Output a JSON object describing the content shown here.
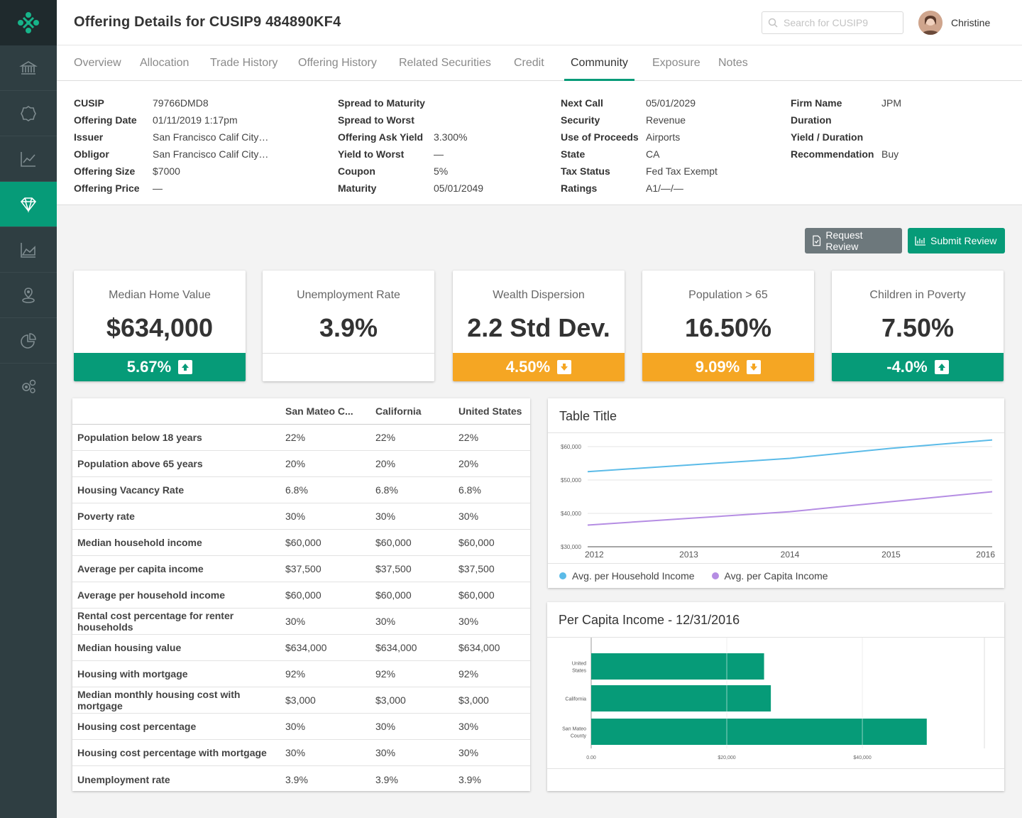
{
  "page": {
    "title": "Offering Details for CUSIP9 484890KF4"
  },
  "search": {
    "placeholder": "Search for CUSIP9"
  },
  "user": {
    "name": "Christine"
  },
  "tabs": [
    "Overview",
    "Allocation",
    "Trade History",
    "Offering History",
    "Related Securities",
    "Credit",
    "Community",
    "Exposure",
    "Notes"
  ],
  "details": {
    "col1": [
      {
        "label": "CUSIP",
        "value": "79766DMD8"
      },
      {
        "label": "Offering Date",
        "value": "01/11/2019 1:17pm"
      },
      {
        "label": "Issuer",
        "value": "San Francisco Calif City…"
      },
      {
        "label": "Obligor",
        "value": "San Francisco Calif City…"
      },
      {
        "label": "Offering Size",
        "value": "$7000"
      },
      {
        "label": "Offering Price",
        "value": "—"
      }
    ],
    "col2": [
      {
        "label": "Spread to Maturity",
        "value": ""
      },
      {
        "label": "Spread to Worst",
        "value": ""
      },
      {
        "label": "Offering Ask Yield",
        "value": "3.300%"
      },
      {
        "label": "Yield to Worst",
        "value": "—"
      },
      {
        "label": "Coupon",
        "value": "5%"
      },
      {
        "label": "Maturity",
        "value": "05/01/2049"
      }
    ],
    "col3": [
      {
        "label": "Next Call",
        "value": "05/01/2029"
      },
      {
        "label": "Security",
        "value": "Revenue"
      },
      {
        "label": "Use of Proceeds",
        "value": "Airports"
      },
      {
        "label": "State",
        "value": "CA"
      },
      {
        "label": "Tax Status",
        "value": "Fed Tax Exempt"
      },
      {
        "label": "Ratings",
        "value": "A1/—/—"
      }
    ],
    "col4": [
      {
        "label": "Firm Name",
        "value": "JPM"
      },
      {
        "label": "Duration",
        "value": ""
      },
      {
        "label": "Yield / Duration",
        "value": ""
      },
      {
        "label": "Recommendation",
        "value": "Buy"
      }
    ]
  },
  "buttons": {
    "request": "Request Review",
    "submit": "Submit Review"
  },
  "metrics": [
    {
      "title": "Median Home Value",
      "value": "$634,000",
      "change": "5.67%",
      "trend": "up",
      "color": "#069b78"
    },
    {
      "title": "Unemployment Rate",
      "value": "3.9%",
      "change": "",
      "trend": "none",
      "color": "#ffffff"
    },
    {
      "title": "Wealth Dispersion",
      "value": "2.2 Std Dev.",
      "change": "4.50%",
      "trend": "down",
      "color": "#f5a623"
    },
    {
      "title": "Population > 65",
      "value": "16.50%",
      "change": "9.09%",
      "trend": "down",
      "color": "#f5a623"
    },
    {
      "title": "Children in Poverty",
      "value": "7.50%",
      "change": "-4.0%",
      "trend": "up",
      "color": "#069b78"
    }
  ],
  "table": {
    "headers": [
      "",
      "San Mateo C...",
      "California",
      "United States"
    ],
    "rows": [
      [
        "Population below 18 years",
        "22%",
        "22%",
        "22%"
      ],
      [
        "Population above 65 years",
        "20%",
        "20%",
        "20%"
      ],
      [
        "Housing Vacancy Rate",
        "6.8%",
        "6.8%",
        "6.8%"
      ],
      [
        "Poverty rate",
        "30%",
        "30%",
        "30%"
      ],
      [
        "Median household income",
        "$60,000",
        "$60,000",
        "$60,000"
      ],
      [
        "Average per capita income",
        "$37,500",
        "$37,500",
        "$37,500"
      ],
      [
        "Average per household income",
        "$60,000",
        "$60,000",
        "$60,000"
      ],
      [
        "Rental cost percentage for renter households",
        "30%",
        "30%",
        "30%"
      ],
      [
        "Median housing value",
        "$634,000",
        "$634,000",
        "$634,000"
      ],
      [
        "Housing with mortgage",
        "92%",
        "92%",
        "92%"
      ],
      [
        "Median monthly housing cost with mortgage",
        "$3,000",
        "$3,000",
        "$3,000"
      ],
      [
        "Housing cost percentage",
        "30%",
        "30%",
        "30%"
      ],
      [
        "Housing cost percentage with mortgage",
        "30%",
        "30%",
        "30%"
      ],
      [
        "Unemployment rate",
        "3.9%",
        "3.9%",
        "3.9%"
      ]
    ]
  },
  "chart_data": [
    {
      "type": "line",
      "title": "Table Title",
      "x": [
        2012,
        2013,
        2014,
        2015,
        2016
      ],
      "x_tick_labels": [
        "2012",
        "2013",
        "2014",
        "2015",
        "2016"
      ],
      "ylim": [
        30000,
        60000
      ],
      "y_ticks": [
        30000,
        40000,
        50000,
        60000
      ],
      "y_tick_labels": [
        "$30,000",
        "$40,000",
        "$50,000",
        "$60,000"
      ],
      "series": [
        {
          "name": "Avg. per Household Income",
          "color": "#5bbbe8",
          "values": [
            52500,
            54500,
            56500,
            59500,
            62000
          ]
        },
        {
          "name": "Avg. per Capita Income",
          "color": "#b58de3",
          "values": [
            36500,
            38500,
            40500,
            43500,
            46500
          ]
        }
      ],
      "legend": "bottom-left"
    },
    {
      "type": "bar",
      "orientation": "horizontal",
      "title": "Per Capita Income - 12/31/2016",
      "categories": [
        "United States",
        "California",
        "San Mateo County"
      ],
      "values": [
        25500,
        26500,
        49500
      ],
      "xlim": [
        0,
        58000
      ],
      "x_ticks": [
        0,
        20000,
        40000
      ],
      "x_tick_labels": [
        "0.00",
        "$20,000",
        "$40,000"
      ],
      "color": "#069b78"
    }
  ]
}
